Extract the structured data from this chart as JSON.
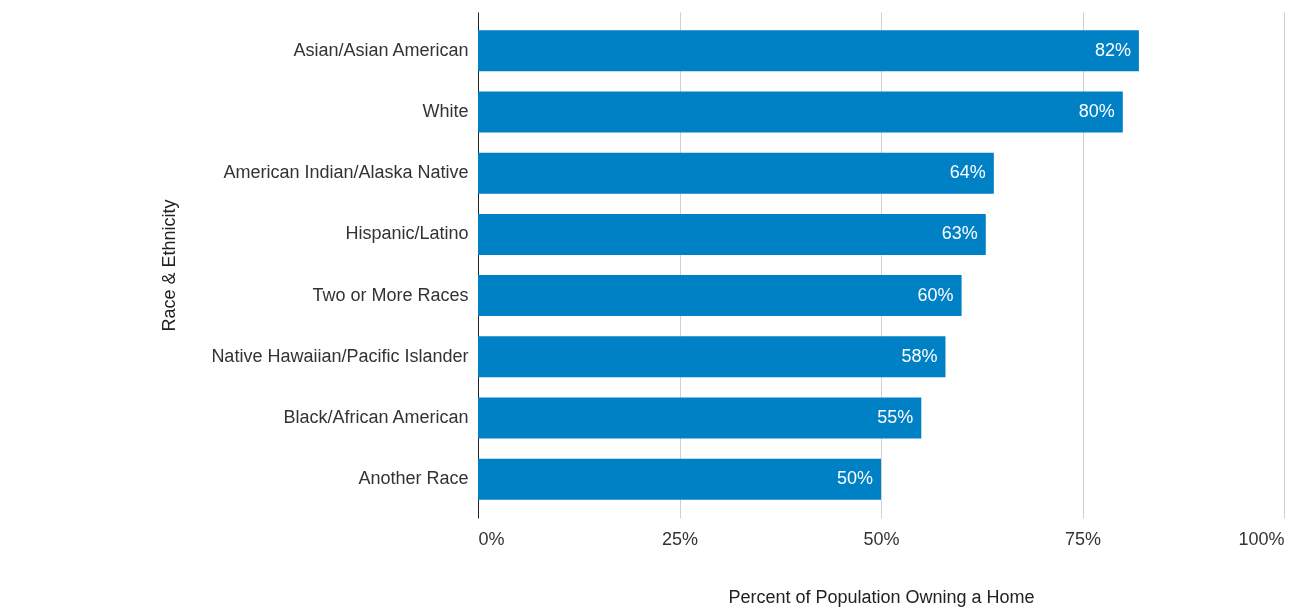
{
  "chart_data": {
    "type": "bar",
    "orientation": "horizontal",
    "xlabel": "Percent of Population Owning a Home",
    "ylabel": "Race & Ethnicity",
    "categories": [
      "Asian/Asian American",
      "White",
      "American Indian/Alaska Native",
      "Hispanic/Latino",
      "Two or More Races",
      "Native Hawaiian/Pacific Islander",
      "Black/African American",
      "Another Race"
    ],
    "values": [
      82,
      80,
      64,
      63,
      60,
      58,
      55,
      50
    ],
    "value_labels": [
      "82%",
      "80%",
      "64%",
      "63%",
      "60%",
      "58%",
      "55%",
      "50%"
    ],
    "color": "#0081c6",
    "xlim": [
      0,
      100
    ],
    "xticks": [
      {
        "value": 0,
        "label": "0%"
      },
      {
        "value": 25,
        "label": "25%"
      },
      {
        "value": 50,
        "label": "50%"
      },
      {
        "value": 75,
        "label": "75%"
      },
      {
        "value": 100,
        "label": "100%"
      }
    ],
    "grid": "x"
  }
}
